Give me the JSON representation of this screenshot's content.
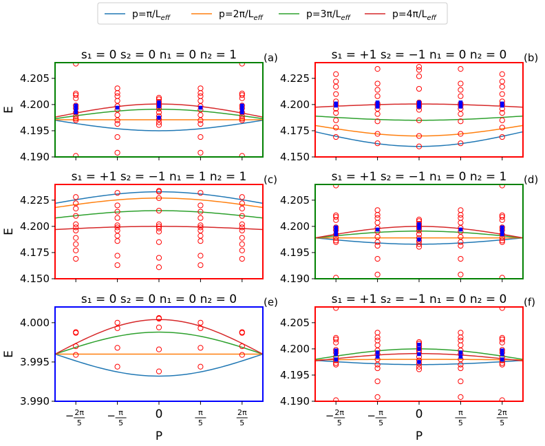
{
  "legend": {
    "entries": [
      {
        "label": "p=π/L",
        "sub": "eff",
        "color": "#1f77b4"
      },
      {
        "label": "p=2π/L",
        "sub": "eff",
        "color": "#ff7f0e"
      },
      {
        "label": "p=3π/L",
        "sub": "eff",
        "color": "#2ca02c"
      },
      {
        "label": "p=4π/L",
        "sub": "eff",
        "color": "#d62728"
      }
    ]
  },
  "xaxis": {
    "label": "P",
    "ticks": [
      {
        "value": -1.2566,
        "text": "−2π/5"
      },
      {
        "value": -0.6283,
        "text": "−π/5"
      },
      {
        "value": 0,
        "text": "0"
      },
      {
        "value": 0.6283,
        "text": "π/5"
      },
      {
        "value": 1.2566,
        "text": "2π/5"
      }
    ],
    "range": [
      -1.5708,
      1.5708
    ]
  },
  "ylabel": "E",
  "chart_data": [
    {
      "type": "line",
      "id": "a",
      "panel_label": "(a)",
      "title": "s₁ = 0  s₂ = 0  n₁ = 0  n₂ = 1",
      "frame_color": "#008000",
      "ylim": [
        4.19,
        4.208
      ],
      "yticks": [
        "4.190",
        "4.195",
        "4.200",
        "4.205"
      ],
      "ytick_values": [
        4.19,
        4.195,
        4.2,
        4.205
      ],
      "curves": [
        {
          "name": "p=π/L_eff",
          "color": "#1f77b4",
          "center": 4.195,
          "edge": 4.197
        },
        {
          "name": "p=2π/L_eff",
          "color": "#ff7f0e",
          "center": 4.1971,
          "edge": 4.1971
        },
        {
          "name": "p=3π/L_eff",
          "color": "#2ca02c",
          "center": 4.1991,
          "edge": 4.1973
        },
        {
          "name": "p=4π/L_eff",
          "color": "#d62728",
          "center": 4.2001,
          "edge": 4.1976
        }
      ],
      "red_points": [
        {
          "x": -1.2566,
          "y": [
            4.1902,
            4.197,
            4.1973,
            4.1978,
            4.1985,
            4.1993,
            4.1998,
            4.2012,
            4.2018,
            4.2021,
            4.2078
          ]
        },
        {
          "x": -0.6283,
          "y": [
            4.1908,
            4.1938,
            4.1963,
            4.197,
            4.198,
            4.199,
            4.1997,
            4.2007,
            4.2016,
            4.2022,
            4.2031
          ]
        },
        {
          "x": 0,
          "y": [
            4.1961,
            4.1966,
            4.1972,
            4.1978,
            4.1985,
            4.1992,
            4.1997,
            4.2001,
            4.2005,
            4.201,
            4.2013
          ]
        },
        {
          "x": 0.6283,
          "y": [
            4.1908,
            4.1938,
            4.1963,
            4.197,
            4.198,
            4.199,
            4.1997,
            4.2007,
            4.2016,
            4.2022,
            4.2031
          ]
        },
        {
          "x": 1.2566,
          "y": [
            4.1902,
            4.197,
            4.1973,
            4.1978,
            4.1985,
            4.1993,
            4.1998,
            4.2012,
            4.2018,
            4.2021,
            4.2078
          ]
        }
      ],
      "blue_points": [
        {
          "x": -1.2566,
          "y": [
            4.1985,
            4.1992,
            4.1998
          ]
        },
        {
          "x": -0.6283,
          "y": [
            4.1994
          ]
        },
        {
          "x": 0,
          "y": [
            4.1975,
            4.1997,
            4.2004
          ]
        },
        {
          "x": 0.6283,
          "y": [
            4.1994
          ]
        },
        {
          "x": 1.2566,
          "y": [
            4.1985,
            4.1992,
            4.1998
          ]
        }
      ]
    },
    {
      "type": "line",
      "id": "b",
      "panel_label": "(b)",
      "title": "s₁ = +1  s₂ = −1  n₁ = 0  n₂ = 0",
      "frame_color": "#ff0000",
      "ylim": [
        4.15,
        4.24
      ],
      "yticks": [
        "4.150",
        "4.175",
        "4.200",
        "4.225"
      ],
      "ytick_values": [
        4.15,
        4.175,
        4.2,
        4.225
      ],
      "curves": [
        {
          "name": "p=π/L_eff",
          "color": "#1f77b4",
          "center": 4.16,
          "edge": 4.174
        },
        {
          "name": "p=2π/L_eff",
          "color": "#ff7f0e",
          "center": 4.17,
          "edge": 4.18
        },
        {
          "name": "p=3π/L_eff",
          "color": "#2ca02c",
          "center": 4.185,
          "edge": 4.189
        },
        {
          "name": "p=4π/L_eff",
          "color": "#d62728",
          "center": 4.2005,
          "edge": 4.1975
        }
      ],
      "red_points": [
        {
          "x": -1.2566,
          "y": [
            4.169,
            4.178,
            4.185,
            4.192,
            4.196,
            4.2,
            4.203,
            4.21,
            4.217,
            4.222,
            4.229
          ]
        },
        {
          "x": -0.6283,
          "y": [
            4.163,
            4.172,
            4.184,
            4.191,
            4.196,
            4.199,
            4.201,
            4.208,
            4.214,
            4.22,
            4.234
          ]
        },
        {
          "x": 0,
          "y": [
            4.16,
            4.17,
            4.185,
            4.195,
            4.198,
            4.2,
            4.202,
            4.215,
            4.227,
            4.233,
            4.236
          ]
        },
        {
          "x": 0.6283,
          "y": [
            4.163,
            4.172,
            4.184,
            4.191,
            4.196,
            4.199,
            4.201,
            4.208,
            4.214,
            4.22,
            4.234
          ]
        },
        {
          "x": 1.2566,
          "y": [
            4.169,
            4.178,
            4.185,
            4.192,
            4.196,
            4.2,
            4.203,
            4.21,
            4.217,
            4.222,
            4.229
          ]
        }
      ],
      "blue_points": [
        {
          "x": -1.2566,
          "y": [
            4.199,
            4.201
          ]
        },
        {
          "x": -0.6283,
          "y": [
            4.198,
            4.2,
            4.202
          ]
        },
        {
          "x": 0,
          "y": [
            4.198,
            4.2,
            4.202
          ]
        },
        {
          "x": 0.6283,
          "y": [
            4.198,
            4.2,
            4.202
          ]
        },
        {
          "x": 1.2566,
          "y": [
            4.199,
            4.201
          ]
        }
      ]
    },
    {
      "type": "line",
      "id": "c",
      "panel_label": "(c)",
      "title": "s₁ = +1  s₂ = −1  n₁ = 1  n₂ = 1",
      "frame_color": "#ff0000",
      "ylim": [
        4.15,
        4.24
      ],
      "yticks": [
        "4.150",
        "4.175",
        "4.200",
        "4.225"
      ],
      "ytick_values": [
        4.15,
        4.175,
        4.2,
        4.225
      ],
      "curves": [
        {
          "name": "p=π/L_eff",
          "color": "#1f77b4",
          "center": 4.233,
          "edge": 4.222
        },
        {
          "name": "p=2π/L_eff",
          "color": "#ff7f0e",
          "center": 4.227,
          "edge": 4.218
        },
        {
          "name": "p=3π/L_eff",
          "color": "#2ca02c",
          "center": 4.215,
          "edge": 4.208
        },
        {
          "name": "p=4π/L_eff",
          "color": "#d62728",
          "center": 4.2,
          "edge": 4.197
        }
      ],
      "red_points": [
        {
          "x": -1.2566,
          "y": [
            4.169,
            4.177,
            4.183,
            4.189,
            4.196,
            4.199,
            4.202,
            4.21,
            4.217,
            4.222,
            4.228
          ]
        },
        {
          "x": -0.6283,
          "y": [
            4.163,
            4.172,
            4.186,
            4.191,
            4.196,
            4.199,
            4.201,
            4.208,
            4.214,
            4.22,
            4.232
          ]
        },
        {
          "x": 0,
          "y": [
            4.161,
            4.17,
            4.185,
            4.195,
            4.198,
            4.2,
            4.202,
            4.215,
            4.227,
            4.233,
            4.234
          ]
        },
        {
          "x": 0.6283,
          "y": [
            4.163,
            4.172,
            4.186,
            4.191,
            4.196,
            4.199,
            4.201,
            4.208,
            4.214,
            4.22,
            4.232
          ]
        },
        {
          "x": 1.2566,
          "y": [
            4.169,
            4.177,
            4.183,
            4.189,
            4.196,
            4.199,
            4.202,
            4.21,
            4.217,
            4.222,
            4.228
          ]
        }
      ],
      "blue_points": []
    },
    {
      "type": "line",
      "id": "d",
      "panel_label": "(d)",
      "title": "s₁ = +1  s₂ = −1  n₁ = 0  n₂ = 1",
      "frame_color": "#008000",
      "ylim": [
        4.19,
        4.208
      ],
      "yticks": [
        "4.190",
        "4.195",
        "4.200",
        "4.205"
      ],
      "ytick_values": [
        4.19,
        4.195,
        4.2,
        4.205
      ],
      "curves": [
        {
          "name": "p=π/L_eff",
          "color": "#1f77b4",
          "center": 4.1966,
          "edge": 4.1978
        },
        {
          "name": "p=2π/L_eff",
          "color": "#ff7f0e",
          "center": 4.1978,
          "edge": 4.1978
        },
        {
          "name": "p=3π/L_eff",
          "color": "#2ca02c",
          "center": 4.1991,
          "edge": 4.1978
        },
        {
          "name": "p=4π/L_eff",
          "color": "#d62728",
          "center": 4.2,
          "edge": 4.1978
        }
      ],
      "red_points": [
        {
          "x": -1.2566,
          "y": [
            4.1902,
            4.197,
            4.1973,
            4.1978,
            4.1985,
            4.1993,
            4.1998,
            4.2012,
            4.2018,
            4.2021,
            4.2078
          ]
        },
        {
          "x": -0.6283,
          "y": [
            4.1908,
            4.1938,
            4.1963,
            4.197,
            4.198,
            4.199,
            4.1997,
            4.2007,
            4.2016,
            4.2022,
            4.2031
          ]
        },
        {
          "x": 0,
          "y": [
            4.1961,
            4.1966,
            4.1972,
            4.1978,
            4.1985,
            4.1992,
            4.1997,
            4.2001,
            4.2005,
            4.201,
            4.2013
          ]
        },
        {
          "x": 0.6283,
          "y": [
            4.1908,
            4.1938,
            4.1963,
            4.197,
            4.198,
            4.199,
            4.1997,
            4.2007,
            4.2016,
            4.2022,
            4.2031
          ]
        },
        {
          "x": 1.2566,
          "y": [
            4.1902,
            4.197,
            4.1973,
            4.1978,
            4.1985,
            4.1993,
            4.1998,
            4.2012,
            4.2018,
            4.2021,
            4.2078
          ]
        }
      ],
      "blue_points": [
        {
          "x": -1.2566,
          "y": [
            4.1985,
            4.1992,
            4.1998
          ]
        },
        {
          "x": -0.6283,
          "y": [
            4.1994
          ]
        },
        {
          "x": 0,
          "y": [
            4.1975,
            4.1997,
            4.2004
          ]
        },
        {
          "x": 0.6283,
          "y": [
            4.1994
          ]
        },
        {
          "x": 1.2566,
          "y": [
            4.1985,
            4.1992,
            4.1998
          ]
        }
      ]
    },
    {
      "type": "line",
      "id": "e",
      "panel_label": "(e)",
      "title": "s₁ = 0  s₂ = 0  n₁ = 0  n₂ = 0",
      "frame_color": "#0000ff",
      "ylim": [
        3.99,
        4.002
      ],
      "yticks": [
        "3.990",
        "3.995",
        "4.000"
      ],
      "ytick_values": [
        3.99,
        3.995,
        4.0
      ],
      "curves": [
        {
          "name": "p=π/L_eff",
          "color": "#1f77b4",
          "center": 3.9932,
          "edge": 3.996
        },
        {
          "name": "p=2π/L_eff",
          "color": "#ff7f0e",
          "center": 3.996,
          "edge": 3.996
        },
        {
          "name": "p=3π/L_eff",
          "color": "#2ca02c",
          "center": 3.9988,
          "edge": 3.996
        },
        {
          "name": "p=4π/L_eff",
          "color": "#d62728",
          "center": 4.0004,
          "edge": 3.996
        }
      ],
      "red_points": [
        {
          "x": -1.2566,
          "y": [
            3.9959,
            3.997,
            3.9987,
            3.9988
          ]
        },
        {
          "x": -0.6283,
          "y": [
            3.9944,
            3.9968,
            3.9993,
            4.0
          ]
        },
        {
          "x": 0,
          "y": [
            3.9938,
            3.9966,
            3.9994,
            4.0005,
            4.0006
          ]
        },
        {
          "x": 0.6283,
          "y": [
            3.9944,
            3.9968,
            3.9993,
            4.0
          ]
        },
        {
          "x": 1.2566,
          "y": [
            3.9959,
            3.997,
            3.9987,
            3.9988
          ]
        }
      ],
      "blue_points": []
    },
    {
      "type": "line",
      "id": "f",
      "panel_label": "(f)",
      "title": "s₁ = +1  s₂ = −1  n₁ = 0  n₂ = 0",
      "frame_color": "#ff0000",
      "ylim": [
        4.19,
        4.208
      ],
      "yticks": [
        "4.190",
        "4.195",
        "4.200",
        "4.205"
      ],
      "ytick_values": [
        4.19,
        4.195,
        4.2,
        4.205
      ],
      "curves": [
        {
          "name": "p=π/L_eff",
          "color": "#1f77b4",
          "center": 4.197,
          "edge": 4.1978
        },
        {
          "name": "p=2π/L_eff",
          "color": "#ff7f0e",
          "center": 4.198,
          "edge": 4.1979
        },
        {
          "name": "p=3π/L_eff",
          "color": "#2ca02c",
          "center": 4.2,
          "edge": 4.198
        },
        {
          "name": "p=4π/L_eff",
          "color": "#d62728",
          "center": 4.1991,
          "edge": 4.1977
        }
      ],
      "red_points": [
        {
          "x": -1.2566,
          "y": [
            4.1902,
            4.197,
            4.1973,
            4.1978,
            4.1985,
            4.1993,
            4.1998,
            4.2012,
            4.2018,
            4.2021,
            4.2078
          ]
        },
        {
          "x": -0.6283,
          "y": [
            4.1908,
            4.1938,
            4.1963,
            4.197,
            4.198,
            4.199,
            4.1997,
            4.2007,
            4.2016,
            4.2022,
            4.2031
          ]
        },
        {
          "x": 0,
          "y": [
            4.1961,
            4.1966,
            4.1972,
            4.1978,
            4.1985,
            4.1992,
            4.1997,
            4.2001,
            4.2005,
            4.201,
            4.2013
          ]
        },
        {
          "x": 0.6283,
          "y": [
            4.1908,
            4.1938,
            4.1963,
            4.197,
            4.198,
            4.199,
            4.1997,
            4.2007,
            4.2016,
            4.2022,
            4.2031
          ]
        },
        {
          "x": 1.2566,
          "y": [
            4.1902,
            4.197,
            4.1973,
            4.1978,
            4.1985,
            4.1993,
            4.1998,
            4.2012,
            4.2018,
            4.2021,
            4.2078
          ]
        }
      ],
      "blue_points": [
        {
          "x": -1.2566,
          "y": [
            4.198,
            4.199,
            4.1997
          ]
        },
        {
          "x": -0.6283,
          "y": [
            4.1985,
            4.1993
          ]
        },
        {
          "x": 0,
          "y": [
            4.1975,
            4.199,
            4.2,
            4.2008
          ]
        },
        {
          "x": 0.6283,
          "y": [
            4.1985,
            4.1993
          ]
        },
        {
          "x": 1.2566,
          "y": [
            4.198,
            4.199,
            4.1997
          ]
        }
      ]
    }
  ]
}
